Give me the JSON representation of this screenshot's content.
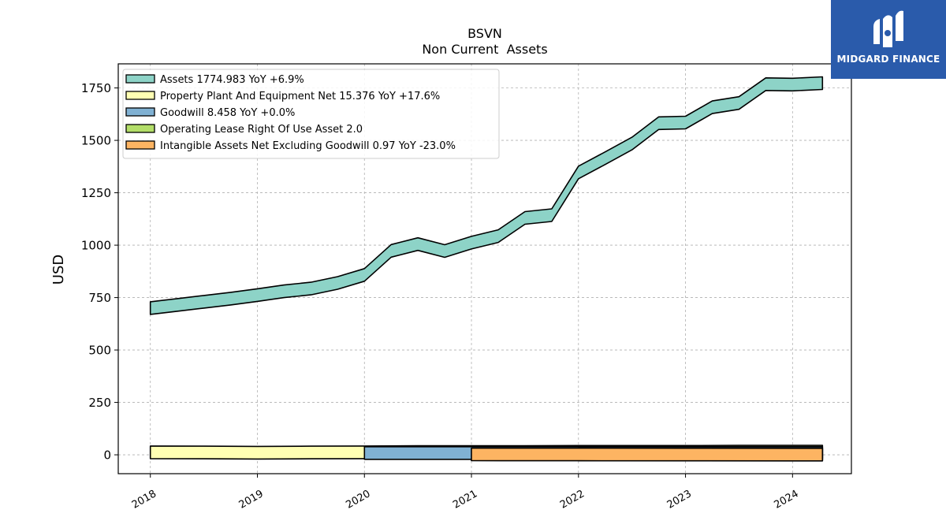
{
  "logo": {
    "text": "MIDGARD FINANCE",
    "bg_color": "#2a5bab"
  },
  "chart_data": {
    "type": "area",
    "title": "BSVN",
    "subtitle": "Non Current  Assets",
    "ylabel": "USD",
    "xlabel": "",
    "xlim": [
      2017.7,
      2024.55
    ],
    "ylim": [
      -90,
      1865
    ],
    "yticks": [
      0,
      250,
      500,
      750,
      1000,
      1250,
      1500,
      1750
    ],
    "xticks": [
      "2018",
      "2019",
      "2020",
      "2021",
      "2022",
      "2023",
      "2024"
    ],
    "grid": true,
    "legend_position": "top-left",
    "series": [
      {
        "name": "Assets  1774.983 YoY +6.9%",
        "color": "#8dd3c7",
        "points": [
          [
            2018.0,
            700
          ],
          [
            2018.25,
            715
          ],
          [
            2018.5,
            730
          ],
          [
            2018.75,
            745
          ],
          [
            2019.0,
            762
          ],
          [
            2019.25,
            780
          ],
          [
            2019.5,
            793
          ],
          [
            2019.75,
            820
          ],
          [
            2020.0,
            858
          ],
          [
            2020.25,
            973
          ],
          [
            2020.5,
            1005
          ],
          [
            2020.75,
            972
          ],
          [
            2021.0,
            1012
          ],
          [
            2021.25,
            1043
          ],
          [
            2021.5,
            1130
          ],
          [
            2021.75,
            1143
          ],
          [
            2022.0,
            1347
          ],
          [
            2022.25,
            1415
          ],
          [
            2022.5,
            1485
          ],
          [
            2022.75,
            1582
          ],
          [
            2023.0,
            1585
          ],
          [
            2023.25,
            1658
          ],
          [
            2023.5,
            1678
          ],
          [
            2023.75,
            1768
          ],
          [
            2024.0,
            1766
          ],
          [
            2024.28,
            1773
          ]
        ]
      },
      {
        "name": "Property Plant And Equipment Net  15.376 YoY +17.6%",
        "color": "#ffffb3",
        "points": [
          [
            2018.0,
            12
          ],
          [
            2018.5,
            11
          ],
          [
            2019.0,
            10
          ],
          [
            2019.5,
            11
          ],
          [
            2020.0,
            12
          ],
          [
            2020.5,
            13
          ],
          [
            2021.0,
            13
          ],
          [
            2021.5,
            13
          ],
          [
            2022.0,
            14
          ],
          [
            2022.5,
            14
          ],
          [
            2023.0,
            14
          ],
          [
            2023.5,
            15
          ],
          [
            2024.0,
            15
          ],
          [
            2024.28,
            15.4
          ]
        ]
      },
      {
        "name": "Goodwill  8.458 YoY +0.0%",
        "color": "#80b1d3",
        "points": [
          [
            2020.0,
            8.458
          ],
          [
            2021.0,
            8.458
          ],
          [
            2022.0,
            8.458
          ],
          [
            2023.0,
            8.458
          ],
          [
            2024.28,
            8.458
          ]
        ]
      },
      {
        "name": "Operating Lease Right Of Use Asset  2.0",
        "color": "#b3de69",
        "points": [
          [
            2022.0,
            2.0
          ],
          [
            2024.28,
            2.0
          ]
        ]
      },
      {
        "name": "Intangible Assets Net Excluding Goodwill  0.97 YoY -23.0%",
        "color": "#fdb462",
        "points": [
          [
            2021.0,
            2.0
          ],
          [
            2022.0,
            1.6
          ],
          [
            2023.0,
            1.26
          ],
          [
            2024.28,
            0.97
          ]
        ]
      }
    ]
  }
}
